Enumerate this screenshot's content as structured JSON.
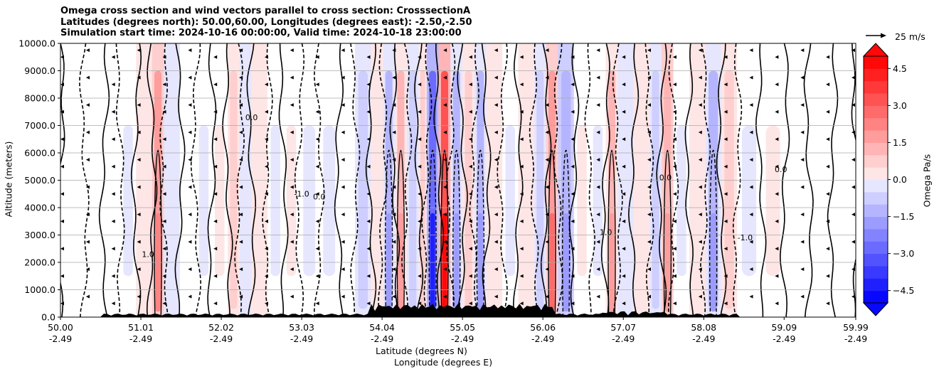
{
  "chart_data": {
    "type": "heatmap",
    "title": [
      "Omega cross section and wind vectors parallel to cross section: CrosssectionA",
      "Latitudes (degrees north): 50.00,60.00, Longitudes (degrees east): -2.50,-2.50",
      "Simulation start time: 2024-10-16 00:00:00, Valid time: 2024-10-18 23:00:00"
    ],
    "xlabel_lat": "Latitude (degrees N)",
    "xlabel_lon": "Longitude (degrees E)",
    "ylabel": "Altitude (meters)",
    "colorbar_label": "Omega Pa/s",
    "reference_vector": "25 m/s",
    "ylim": [
      0,
      10000
    ],
    "yticks": [
      "0.0",
      "1000.0",
      "2000.0",
      "3000.0",
      "4000.0",
      "5000.0",
      "6000.0",
      "7000.0",
      "8000.0",
      "9000.0",
      "10000.0"
    ],
    "ytick_values": [
      0,
      1000,
      2000,
      3000,
      4000,
      5000,
      6000,
      7000,
      8000,
      9000,
      10000
    ],
    "xlim": [
      50.0,
      59.99
    ],
    "xticks": [
      {
        "lat": "50.00",
        "lon": "-2.49",
        "value": 50.0
      },
      {
        "lat": "51.01",
        "lon": "-2.49",
        "value": 51.01
      },
      {
        "lat": "52.02",
        "lon": "-2.49",
        "value": 52.02
      },
      {
        "lat": "53.03",
        "lon": "-2.49",
        "value": 53.03
      },
      {
        "lat": "54.04",
        "lon": "-2.49",
        "value": 54.04
      },
      {
        "lat": "55.05",
        "lon": "-2.49",
        "value": 55.05
      },
      {
        "lat": "56.06",
        "lon": "-2.49",
        "value": 56.06
      },
      {
        "lat": "57.07",
        "lon": "-2.49",
        "value": 57.07
      },
      {
        "lat": "58.08",
        "lon": "-2.49",
        "value": 58.08
      },
      {
        "lat": "59.09",
        "lon": "-2.49",
        "value": 59.09
      },
      {
        "lat": "59.99",
        "lon": "-2.49",
        "value": 59.99
      }
    ],
    "colorbar_range": [
      -5.0,
      5.0
    ],
    "colorbar_ticks": [
      "4.5",
      "3.0",
      "1.5",
      "0.0",
      "−1.5",
      "−3.0",
      "−4.5"
    ],
    "colorbar_tick_values": [
      4.5,
      3.0,
      1.5,
      0.0,
      -1.5,
      -3.0,
      -4.5
    ],
    "grid": true,
    "omega_bands": [
      {
        "lat": 50.0,
        "v": 0.1
      },
      {
        "lat": 50.3,
        "v": -0.3
      },
      {
        "lat": 50.55,
        "v": 0.3
      },
      {
        "lat": 50.75,
        "v": -0.6
      },
      {
        "lat": 50.95,
        "v": 0.8
      },
      {
        "lat": 51.15,
        "v": 2.5
      },
      {
        "lat": 51.3,
        "v": -0.8
      },
      {
        "lat": 51.5,
        "v": 0.3
      },
      {
        "lat": 51.7,
        "v": -0.5
      },
      {
        "lat": 51.9,
        "v": 0.4
      },
      {
        "lat": 52.1,
        "v": 1.2
      },
      {
        "lat": 52.25,
        "v": -1.0
      },
      {
        "lat": 52.4,
        "v": 1.0
      },
      {
        "lat": 52.6,
        "v": -0.6
      },
      {
        "lat": 52.8,
        "v": 0.5
      },
      {
        "lat": 53.0,
        "v": -0.4
      },
      {
        "lat": 53.25,
        "v": -0.6
      },
      {
        "lat": 53.5,
        "v": 0.2
      },
      {
        "lat": 53.7,
        "v": -1.2
      },
      {
        "lat": 53.9,
        "v": 1.0
      },
      {
        "lat": 54.05,
        "v": -2.0
      },
      {
        "lat": 54.2,
        "v": 2.0
      },
      {
        "lat": 54.35,
        "v": -1.5
      },
      {
        "lat": 54.5,
        "v": 1.2
      },
      {
        "lat": 54.6,
        "v": -4.5
      },
      {
        "lat": 54.75,
        "v": 4.8
      },
      {
        "lat": 54.9,
        "v": -2.0
      },
      {
        "lat": 55.05,
        "v": 1.5
      },
      {
        "lat": 55.2,
        "v": -1.8
      },
      {
        "lat": 55.35,
        "v": 1.0
      },
      {
        "lat": 55.55,
        "v": -0.6
      },
      {
        "lat": 55.75,
        "v": 0.8
      },
      {
        "lat": 55.95,
        "v": -1.5
      },
      {
        "lat": 56.1,
        "v": 3.0
      },
      {
        "lat": 56.25,
        "v": -2.2
      },
      {
        "lat": 56.45,
        "v": 0.6
      },
      {
        "lat": 56.65,
        "v": -0.4
      },
      {
        "lat": 56.85,
        "v": 1.8
      },
      {
        "lat": 57.0,
        "v": -1.0
      },
      {
        "lat": 57.2,
        "v": 0.8
      },
      {
        "lat": 57.4,
        "v": -1.2
      },
      {
        "lat": 57.55,
        "v": 2.2
      },
      {
        "lat": 57.7,
        "v": -0.5
      },
      {
        "lat": 57.9,
        "v": 1.0
      },
      {
        "lat": 58.1,
        "v": -2.0
      },
      {
        "lat": 58.3,
        "v": 1.2
      },
      {
        "lat": 58.5,
        "v": -0.4
      },
      {
        "lat": 58.8,
        "v": 0.4
      },
      {
        "lat": 59.1,
        "v": 0.2
      },
      {
        "lat": 59.4,
        "v": 0.3
      },
      {
        "lat": 59.7,
        "v": 0.2
      },
      {
        "lat": 59.99,
        "v": 0.3
      }
    ],
    "contour_labels": [
      {
        "text": "0.0",
        "lat": 53.25,
        "alt": 4300
      },
      {
        "text": "-1.0",
        "lat": 53.03,
        "alt": 4400
      },
      {
        "text": "0.0",
        "lat": 52.4,
        "alt": 7200
      },
      {
        "text": "1.0",
        "lat": 51.1,
        "alt": 2200
      },
      {
        "text": "0.0",
        "lat": 57.6,
        "alt": 5000
      },
      {
        "text": "1.0",
        "lat": 56.85,
        "alt": 3000
      },
      {
        "text": "0.0",
        "lat": 59.05,
        "alt": 5300
      },
      {
        "text": "-1.0",
        "lat": 58.6,
        "alt": 2800
      }
    ]
  },
  "colors": {
    "max_pos": "#ff0000",
    "max_neg": "#0000ff",
    "zero": "#ffffff",
    "terrain": "#000000",
    "grid": "#b0b0b0"
  }
}
